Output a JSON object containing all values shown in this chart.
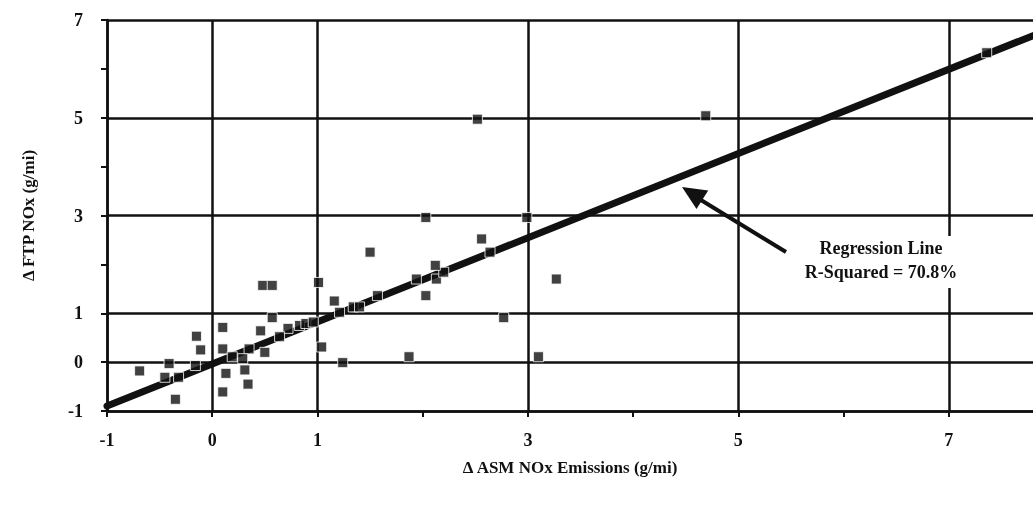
{
  "chart_data": {
    "type": "scatter",
    "xlabel": "Δ ASM NOx Emissions (g/mi)",
    "ylabel": "Δ FTP NOx (g/mi)",
    "series": [
      {
        "color": "#111111",
        "marker": "square",
        "x": [
          7.36,
          4.69,
          2.52,
          2.03,
          2.99,
          2.56,
          2.64,
          1.5,
          3.27,
          2.77,
          0.48,
          0.57,
          1.01,
          1.16,
          1.21,
          1.34,
          1.4,
          1.57,
          1.94,
          2.03,
          2.13,
          2.2,
          2.12,
          0.57,
          0.72,
          0.46,
          -0.15,
          -0.11,
          0.1,
          0.1,
          0.19,
          0.5,
          0.35,
          1.04,
          1.24,
          1.87,
          3.1,
          -0.69,
          -0.45,
          -0.32,
          -0.35,
          0.13,
          0.1,
          0.31,
          0.34,
          -0.41,
          -0.16,
          0.29,
          0.64,
          0.83,
          0.89,
          0.96
        ],
        "values": [
          6.33,
          5.04,
          4.97,
          2.96,
          2.96,
          2.52,
          2.25,
          2.25,
          1.7,
          0.91,
          1.57,
          1.57,
          1.63,
          1.25,
          1.02,
          1.13,
          1.13,
          1.36,
          1.7,
          1.36,
          1.7,
          1.84,
          1.98,
          0.91,
          0.69,
          0.64,
          0.53,
          0.25,
          0.71,
          0.27,
          0.11,
          0.2,
          0.27,
          0.31,
          -0.01,
          0.11,
          0.11,
          -0.18,
          -0.31,
          -0.31,
          -0.76,
          -0.23,
          -0.61,
          -0.16,
          -0.45,
          -0.03,
          -0.07,
          0.07,
          0.52,
          0.75,
          0.79,
          0.82
        ]
      },
      {
        "type": "line",
        "color": "#111111",
        "marker": "none",
        "line_style": "solid",
        "x": [
          -1,
          7.8
        ],
        "values": [
          -0.9,
          6.68
        ]
      }
    ],
    "xlim": [
      -1,
      7.8
    ],
    "xticks": [
      -1,
      0,
      1,
      {
        "value": 2,
        "label": null
      },
      3,
      {
        "value": 4,
        "label": null
      },
      5,
      {
        "value": 6,
        "label": null
      },
      7
    ],
    "ylim": [
      -1,
      7
    ],
    "yticks": [
      -1,
      0,
      1,
      {
        "value": 2,
        "label": null
      },
      3,
      {
        "value": 4,
        "label": null
      },
      5,
      {
        "value": 6,
        "label": null
      },
      7
    ],
    "grid": true,
    "annotations": [
      "Regression Line\nR-Squared = 70.8%"
    ]
  }
}
